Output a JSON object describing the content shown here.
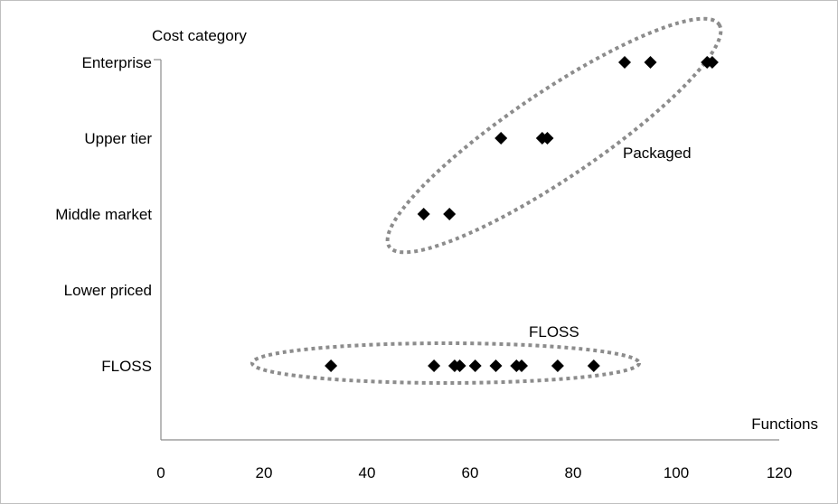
{
  "chart_data": {
    "type": "scatter",
    "title": "",
    "xlabel": "Functions",
    "ylabel": "Cost category",
    "xlim": [
      0,
      120
    ],
    "x_ticks": [
      0,
      20,
      40,
      60,
      80,
      100,
      120
    ],
    "categories": [
      "FLOSS",
      "Lower priced",
      "Middle market",
      "Upper tier",
      "Enterprise"
    ],
    "grid": false,
    "legend": "none",
    "marker": "diamond",
    "marker_color": "#000000",
    "series": [
      {
        "points": [
          {
            "x": 33,
            "y": "FLOSS"
          },
          {
            "x": 53,
            "y": "FLOSS"
          },
          {
            "x": 57,
            "y": "FLOSS"
          },
          {
            "x": 58,
            "y": "FLOSS"
          },
          {
            "x": 61,
            "y": "FLOSS"
          },
          {
            "x": 65,
            "y": "FLOSS"
          },
          {
            "x": 69,
            "y": "FLOSS"
          },
          {
            "x": 70,
            "y": "FLOSS"
          },
          {
            "x": 77,
            "y": "FLOSS"
          },
          {
            "x": 84,
            "y": "FLOSS"
          },
          {
            "x": 51,
            "y": "Middle market"
          },
          {
            "x": 56,
            "y": "Middle market"
          },
          {
            "x": 66,
            "y": "Upper tier"
          },
          {
            "x": 74,
            "y": "Upper tier"
          },
          {
            "x": 75,
            "y": "Upper tier"
          },
          {
            "x": 90,
            "y": "Enterprise"
          },
          {
            "x": 95,
            "y": "Enterprise"
          },
          {
            "x": 106,
            "y": "Enterprise"
          },
          {
            "x": 107,
            "y": "Enterprise"
          }
        ]
      }
    ],
    "annotations": [
      {
        "text": "Packaged",
        "style": "dotted-ellipse",
        "color": "#8c8c8c"
      },
      {
        "text": "FLOSS",
        "style": "dotted-ellipse",
        "color": "#8c8c8c"
      }
    ]
  }
}
